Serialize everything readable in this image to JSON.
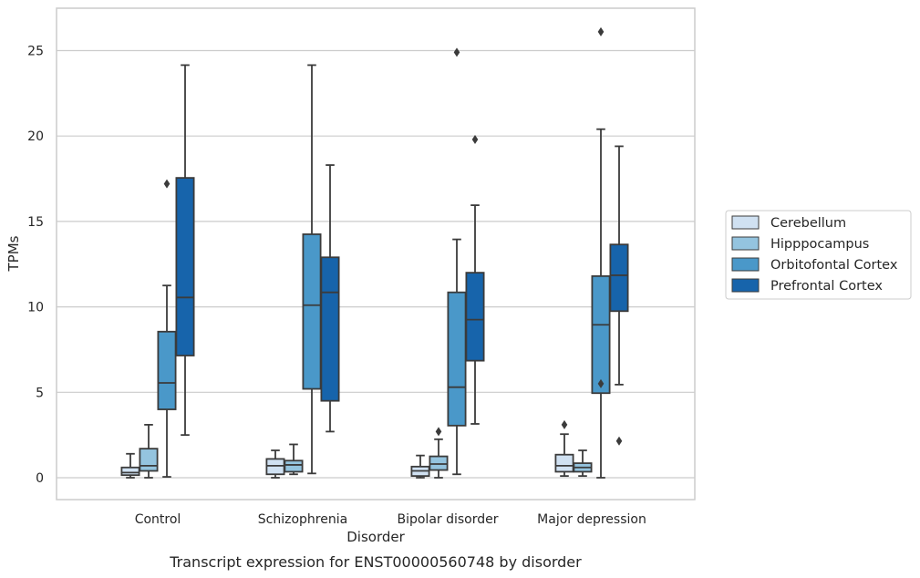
{
  "caption": "Transcript expression for ENST00000560748 by disorder",
  "chart_data": {
    "type": "box",
    "title": "",
    "xlabel": "Disorder",
    "ylabel": "TPMs",
    "ylim": [
      -1.2,
      27.5
    ],
    "yticks": [
      0,
      5,
      10,
      15,
      20,
      25
    ],
    "grid": true,
    "legend_placement": "right",
    "categories": [
      "Control",
      "Schizophrenia",
      "Bipolar disorder",
      "Major depression"
    ],
    "series": [
      {
        "name": "Cerebellum",
        "color": "#d0e1f2",
        "boxes": [
          {
            "whislo": 0.0,
            "q1": 0.15,
            "med": 0.3,
            "q3": 0.6,
            "whishi": 1.4,
            "fliers": []
          },
          {
            "whislo": 0.0,
            "q1": 0.2,
            "med": 0.7,
            "q3": 1.1,
            "whishi": 1.6,
            "fliers": []
          },
          {
            "whislo": 0.0,
            "q1": 0.1,
            "med": 0.4,
            "q3": 0.65,
            "whishi": 1.3,
            "fliers": []
          },
          {
            "whislo": 0.1,
            "q1": 0.35,
            "med": 0.7,
            "q3": 1.35,
            "whishi": 2.55,
            "fliers": [
              3.1
            ]
          }
        ]
      },
      {
        "name": "Hipppocampus",
        "color": "#94c4df",
        "boxes": [
          {
            "whislo": 0.0,
            "q1": 0.4,
            "med": 0.7,
            "q3": 1.7,
            "whishi": 3.1,
            "fliers": []
          },
          {
            "whislo": 0.2,
            "q1": 0.35,
            "med": 0.75,
            "q3": 1.0,
            "whishi": 1.95,
            "fliers": []
          },
          {
            "whislo": 0.0,
            "q1": 0.45,
            "med": 0.8,
            "q3": 1.25,
            "whishi": 2.25,
            "fliers": [
              2.7
            ]
          },
          {
            "whislo": 0.1,
            "q1": 0.35,
            "med": 0.6,
            "q3": 0.85,
            "whishi": 1.6,
            "fliers": []
          }
        ]
      },
      {
        "name": "Orbitofontal Cortex",
        "color": "#4a98c9",
        "boxes": [
          {
            "whislo": 0.05,
            "q1": 4.0,
            "med": 5.55,
            "q3": 8.55,
            "whishi": 11.25,
            "fliers": [
              17.2
            ]
          },
          {
            "whislo": 0.25,
            "q1": 5.2,
            "med": 10.1,
            "q3": 14.25,
            "whishi": 24.15,
            "fliers": []
          },
          {
            "whislo": 0.2,
            "q1": 3.05,
            "med": 5.3,
            "q3": 10.85,
            "whishi": 13.95,
            "fliers": [
              24.9
            ]
          },
          {
            "whislo": 0.0,
            "q1": 4.95,
            "med": 8.95,
            "q3": 11.8,
            "whishi": 20.4,
            "fliers": [
              5.5,
              26.1
            ]
          }
        ]
      },
      {
        "name": "Prefrontal Cortex",
        "color": "#1764ab",
        "boxes": [
          {
            "whislo": 2.5,
            "q1": 7.15,
            "med": 10.55,
            "q3": 17.55,
            "whishi": 24.15,
            "fliers": []
          },
          {
            "whislo": 2.7,
            "q1": 4.5,
            "med": 10.85,
            "q3": 12.9,
            "whishi": 18.3,
            "fliers": []
          },
          {
            "whislo": 3.15,
            "q1": 6.85,
            "med": 9.25,
            "q3": 12.0,
            "whishi": 15.95,
            "fliers": [
              19.8
            ]
          },
          {
            "whislo": 5.45,
            "q1": 9.75,
            "med": 11.85,
            "q3": 13.65,
            "whishi": 19.4,
            "fliers": [
              2.15
            ]
          }
        ]
      }
    ]
  }
}
